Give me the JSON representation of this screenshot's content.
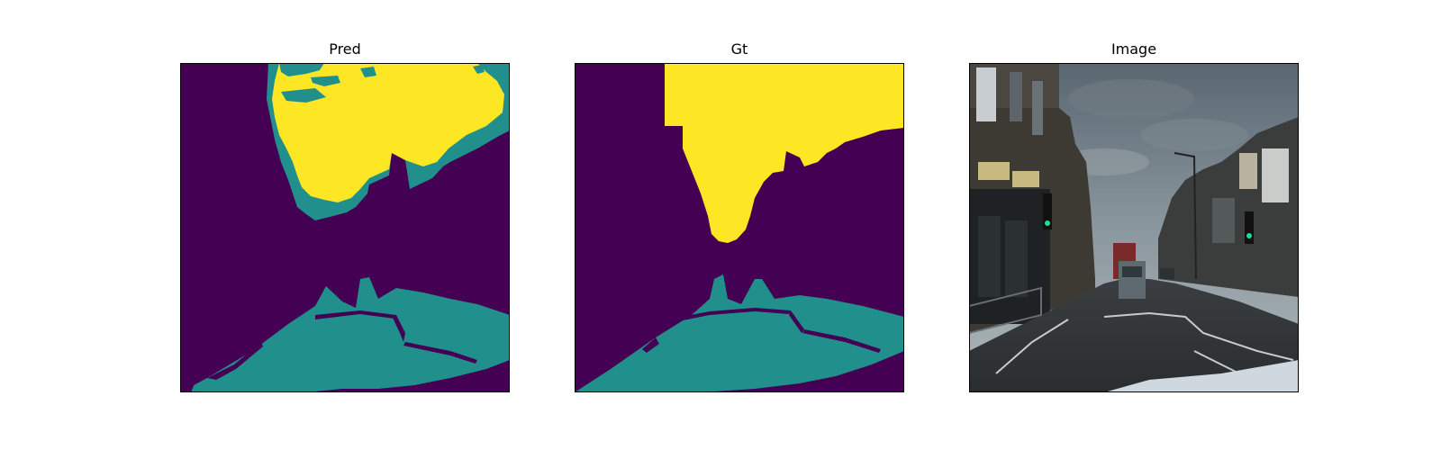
{
  "figure": {
    "panels": [
      {
        "title": "Pred"
      },
      {
        "title": "Gt"
      },
      {
        "title": "Image"
      }
    ]
  },
  "colors": {
    "background_class": "#440154",
    "road_class": "#21908c",
    "sky_class": "#fde725",
    "frame": "#000000"
  }
}
